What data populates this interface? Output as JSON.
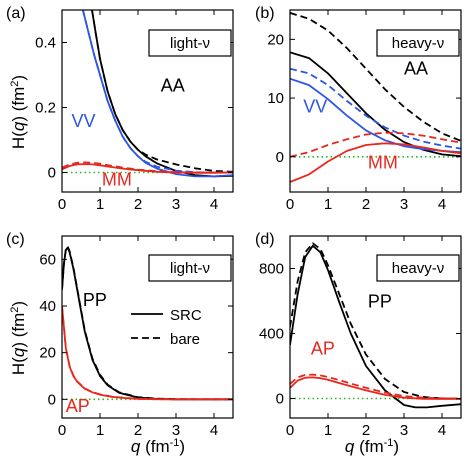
{
  "figure": {
    "y_axis_label_main": "H(",
    "y_axis_label_q": "q",
    "y_axis_label_unit": ") (fm",
    "y_axis_label_sup": "2",
    "y_axis_label_end": ")",
    "x_axis_label_q": "q",
    "x_axis_label_unit": " (fm",
    "x_axis_label_sup": "-1",
    "x_axis_label_end": ")",
    "legend": {
      "solid": "SRC",
      "dashed": "bare"
    }
  },
  "colors": {
    "AA": "#000000",
    "VV": "#2b55e6",
    "MM": "#e8281e",
    "PP": "#000000",
    "AP": "#e8281e",
    "zero": "#29b629"
  },
  "chart_data": [
    {
      "type": "line",
      "panel_label": "(a)",
      "tag": "light-ν",
      "xlim": [
        0,
        4.5
      ],
      "ylim": [
        -0.06,
        0.5
      ],
      "xticks": [
        0,
        1,
        2,
        3,
        4
      ],
      "xtick_labels": [
        "0",
        "1",
        "2",
        "3",
        "4"
      ],
      "yticks": [
        0,
        0.2,
        0.4
      ],
      "ytick_labels": [
        "0",
        "0.2",
        "0.4"
      ],
      "zero_line": true,
      "series": [
        {
          "name": "AA",
          "color_key": "AA",
          "style": "solid",
          "x": [
            0.79,
            0.9,
            1.0,
            1.2,
            1.4,
            1.6,
            1.8,
            2.0,
            2.2,
            2.5,
            3.0,
            3.5,
            4.0,
            4.5
          ],
          "y": [
            0.5,
            0.42,
            0.35,
            0.25,
            0.18,
            0.13,
            0.095,
            0.07,
            0.05,
            0.028,
            0.005,
            -0.008,
            -0.012,
            -0.01
          ]
        },
        {
          "color_key": "AA",
          "style": "dashed",
          "x": [
            0.79,
            0.9,
            1.0,
            1.2,
            1.4,
            1.6,
            1.8,
            2.0,
            2.2,
            2.5,
            3.0,
            3.5,
            4.0,
            4.5
          ],
          "y": [
            0.5,
            0.42,
            0.35,
            0.25,
            0.18,
            0.13,
            0.095,
            0.07,
            0.055,
            0.04,
            0.025,
            0.013,
            0.005,
            0.002
          ]
        },
        {
          "name": "VV",
          "color_key": "VV",
          "style": "solid",
          "x": [
            0.55,
            0.7,
            0.85,
            1.0,
            1.2,
            1.4,
            1.6,
            1.8,
            2.0,
            2.2,
            2.5,
            3.0,
            3.5,
            4.0,
            4.5
          ],
          "y": [
            0.5,
            0.43,
            0.36,
            0.3,
            0.22,
            0.16,
            0.11,
            0.075,
            0.05,
            0.03,
            0.012,
            -0.005,
            -0.012,
            -0.012,
            -0.008
          ]
        },
        {
          "color_key": "VV",
          "style": "dashed",
          "x": [
            0.55,
            0.7,
            0.85,
            1.0,
            1.2,
            1.4,
            1.6,
            1.8,
            2.0,
            2.2,
            2.5,
            3.0,
            3.5,
            4.0,
            4.5
          ],
          "y": [
            0.5,
            0.43,
            0.36,
            0.3,
            0.22,
            0.16,
            0.11,
            0.075,
            0.05,
            0.033,
            0.018,
            0.006,
            0.001,
            0.0,
            0.0
          ]
        },
        {
          "name": "MM",
          "color_key": "MM",
          "style": "solid",
          "x": [
            0,
            0.2,
            0.4,
            0.6,
            0.8,
            1.0,
            1.3,
            1.6,
            2.0,
            2.5,
            3.0,
            3.5,
            4.0,
            4.5
          ],
          "y": [
            0.01,
            0.02,
            0.025,
            0.026,
            0.025,
            0.022,
            0.017,
            0.012,
            0.007,
            0.002,
            0.0,
            -0.001,
            -0.001,
            0.0
          ]
        },
        {
          "color_key": "MM",
          "style": "dashed",
          "x": [
            0,
            0.2,
            0.4,
            0.6,
            0.8,
            1.0,
            1.3,
            1.6,
            2.0,
            2.5,
            3.0,
            3.5,
            4.0,
            4.5
          ],
          "y": [
            0.015,
            0.025,
            0.03,
            0.031,
            0.03,
            0.027,
            0.021,
            0.015,
            0.009,
            0.004,
            0.001,
            0.0,
            0.0,
            0.0
          ]
        }
      ],
      "labels": [
        {
          "text": "AA",
          "color_key": "AA",
          "x": 2.6,
          "y": 0.25
        },
        {
          "text": "VV",
          "color_key": "VV",
          "x": 0.25,
          "y": 0.14
        },
        {
          "text": "MM",
          "color_key": "MM",
          "x": 1.05,
          "y": -0.04
        }
      ]
    },
    {
      "type": "line",
      "panel_label": "(b)",
      "tag": "heavy-ν",
      "xlim": [
        0,
        4.5
      ],
      "ylim": [
        -6,
        25
      ],
      "xticks": [
        0,
        1,
        2,
        3,
        4
      ],
      "xtick_labels": [
        "0",
        "1",
        "2",
        "3",
        "4"
      ],
      "yticks": [
        0,
        10,
        20
      ],
      "ytick_labels": [
        "0",
        "10",
        "20"
      ],
      "zero_line": true,
      "series": [
        {
          "name": "AA",
          "color_key": "AA",
          "style": "solid",
          "x": [
            0,
            0.5,
            1.0,
            1.5,
            2.0,
            2.5,
            3.0,
            3.5,
            4.0,
            4.5
          ],
          "y": [
            17.8,
            16.8,
            14.2,
            10.8,
            7.4,
            4.6,
            2.5,
            1.2,
            0.4,
            0.1
          ]
        },
        {
          "color_key": "AA",
          "style": "dashed",
          "x": [
            0,
            0.5,
            1.0,
            1.5,
            2.0,
            2.5,
            3.0,
            3.5,
            4.0,
            4.5
          ],
          "y": [
            24.5,
            23.5,
            21.5,
            18.5,
            15.0,
            11.5,
            8.5,
            6.0,
            4.0,
            2.7
          ]
        },
        {
          "name": "VV",
          "color_key": "VV",
          "style": "solid",
          "x": [
            0,
            0.5,
            1.0,
            1.5,
            2.0,
            2.5,
            3.0,
            3.5,
            4.0,
            4.5
          ],
          "y": [
            13.3,
            12.2,
            9.8,
            7.0,
            4.5,
            2.8,
            1.8,
            1.3,
            1.0,
            0.8
          ]
        },
        {
          "color_key": "VV",
          "style": "dashed",
          "x": [
            0,
            0.5,
            1.0,
            1.5,
            2.0,
            2.5,
            3.0,
            3.5,
            4.0,
            4.5
          ],
          "y": [
            15.0,
            14.2,
            12.2,
            9.5,
            7.0,
            5.0,
            3.6,
            2.6,
            1.9,
            1.4
          ]
        },
        {
          "name": "MM",
          "color_key": "MM",
          "style": "solid",
          "x": [
            0,
            0.5,
            1.0,
            1.5,
            2.0,
            2.5,
            3.0,
            3.5,
            4.0,
            4.5
          ],
          "y": [
            -4.3,
            -3.0,
            -0.8,
            1.0,
            2.0,
            2.3,
            2.1,
            1.6,
            1.0,
            0.6
          ]
        },
        {
          "color_key": "MM",
          "style": "dashed",
          "x": [
            0,
            0.5,
            1.0,
            1.5,
            2.0,
            2.5,
            3.0,
            3.5,
            4.0,
            4.5
          ],
          "y": [
            0.0,
            0.8,
            2.0,
            3.0,
            3.8,
            4.1,
            4.0,
            3.6,
            3.0,
            2.4
          ]
        }
      ],
      "labels": [
        {
          "text": "AA",
          "color_key": "AA",
          "x": 3.0,
          "y": 14.0
        },
        {
          "text": "VV",
          "color_key": "VV",
          "x": 0.35,
          "y": 7.5
        },
        {
          "text": "MM",
          "color_key": "MM",
          "x": 2.05,
          "y": -2.0
        }
      ]
    },
    {
      "type": "line",
      "panel_label": "(c)",
      "tag": "light-ν",
      "xlim": [
        0,
        4.5
      ],
      "ylim": [
        -8,
        70
      ],
      "xticks": [
        0,
        1,
        2,
        3,
        4
      ],
      "xtick_labels": [
        "0",
        "1",
        "2",
        "3",
        "4"
      ],
      "yticks": [
        0,
        20,
        40,
        60
      ],
      "ytick_labels": [
        "0",
        "20",
        "40",
        "60"
      ],
      "zero_line": true,
      "series": [
        {
          "name": "PP",
          "color_key": "PP",
          "style": "solid",
          "x": [
            0,
            0.05,
            0.1,
            0.15,
            0.2,
            0.3,
            0.4,
            0.5,
            0.6,
            0.8,
            1.0,
            1.2,
            1.5,
            2.0,
            2.5,
            3.0,
            4.0,
            4.5
          ],
          "y": [
            47,
            58,
            64,
            65,
            63,
            56,
            47,
            38,
            29,
            17,
            10,
            6,
            2.8,
            0.8,
            0.2,
            0.0,
            0.0,
            0.0
          ]
        },
        {
          "color_key": "PP",
          "style": "dashed",
          "x": [
            0,
            0.05,
            0.1,
            0.15,
            0.2,
            0.3,
            0.4,
            0.5,
            0.6,
            0.8,
            1.0,
            1.2,
            1.5,
            2.0,
            2.5,
            3.0,
            4.0,
            4.5
          ],
          "y": [
            47,
            58,
            64,
            65.5,
            63.5,
            56.5,
            47.5,
            38.5,
            29.5,
            17.5,
            10.5,
            6.3,
            3.0,
            0.9,
            0.3,
            0.1,
            0.0,
            0.0
          ]
        },
        {
          "name": "AP",
          "color_key": "AP",
          "style": "solid",
          "x": [
            0,
            0.1,
            0.2,
            0.3,
            0.4,
            0.6,
            0.8,
            1.0,
            1.3,
            1.6,
            2.0,
            2.5,
            3.0,
            4.0,
            4.5
          ],
          "y": [
            40,
            22,
            14,
            10,
            7.5,
            4.5,
            3.0,
            2.0,
            1.1,
            0.6,
            0.2,
            0.05,
            0.0,
            0.0,
            0.0
          ]
        },
        {
          "color_key": "AP",
          "style": "dashed",
          "x": [
            0,
            0.1,
            0.2,
            0.3,
            0.4,
            0.6,
            0.8,
            1.0,
            1.3,
            1.6,
            2.0,
            2.5,
            3.0,
            4.0,
            4.5
          ],
          "y": [
            40,
            22.3,
            14.3,
            10.2,
            7.7,
            4.7,
            3.1,
            2.1,
            1.2,
            0.7,
            0.25,
            0.07,
            0.0,
            0.0,
            0.0
          ]
        }
      ],
      "labels": [
        {
          "text": "PP",
          "color_key": "PP",
          "x": 0.55,
          "y": 40
        },
        {
          "text": "AP",
          "color_key": "AP",
          "x": 0.1,
          "y": -5.5
        }
      ],
      "has_legend": true
    },
    {
      "type": "line",
      "panel_label": "(d)",
      "tag": "heavy-ν",
      "xlim": [
        0,
        4.5
      ],
      "ylim": [
        -120,
        1000
      ],
      "xticks": [
        0,
        1,
        2,
        3,
        4
      ],
      "xtick_labels": [
        "0",
        "1",
        "2",
        "3",
        "4"
      ],
      "yticks": [
        0,
        400,
        800
      ],
      "ytick_labels": [
        "0",
        "400",
        "800"
      ],
      "zero_line": true,
      "series": [
        {
          "name": "PP",
          "color_key": "PP",
          "style": "solid",
          "x": [
            0,
            0.2,
            0.4,
            0.6,
            0.8,
            1.0,
            1.3,
            1.6,
            2.0,
            2.5,
            3.0,
            3.3,
            3.6,
            4.0,
            4.5
          ],
          "y": [
            330,
            640,
            870,
            940,
            900,
            790,
            590,
            400,
            200,
            50,
            -40,
            -55,
            -55,
            -45,
            -35
          ]
        },
        {
          "color_key": "PP",
          "style": "dashed",
          "x": [
            0,
            0.2,
            0.4,
            0.6,
            0.8,
            1.0,
            1.3,
            1.6,
            2.0,
            2.5,
            3.0,
            3.5,
            4.0,
            4.5
          ],
          "y": [
            440,
            720,
            900,
            955,
            920,
            820,
            640,
            460,
            270,
            120,
            40,
            10,
            0,
            -3
          ]
        },
        {
          "name": "AP",
          "color_key": "AP",
          "style": "solid",
          "x": [
            0,
            0.2,
            0.4,
            0.6,
            0.8,
            1.0,
            1.3,
            1.6,
            2.0,
            2.5,
            3.0,
            3.5,
            4.0,
            4.5
          ],
          "y": [
            65,
            110,
            128,
            130,
            125,
            115,
            95,
            75,
            50,
            22,
            5,
            -2,
            -3,
            -2
          ]
        },
        {
          "color_key": "AP",
          "style": "dashed",
          "x": [
            0,
            0.2,
            0.4,
            0.6,
            0.8,
            1.0,
            1.3,
            1.6,
            2.0,
            2.5,
            3.0,
            3.5,
            4.0,
            4.5
          ],
          "y": [
            90,
            130,
            145,
            147,
            142,
            132,
            113,
            92,
            66,
            36,
            15,
            5,
            1,
            0
          ]
        }
      ],
      "labels": [
        {
          "text": "PP",
          "color_key": "PP",
          "x": 2.05,
          "y": 560
        },
        {
          "text": "AP",
          "color_key": "AP",
          "x": 0.55,
          "y": 270
        }
      ]
    }
  ]
}
